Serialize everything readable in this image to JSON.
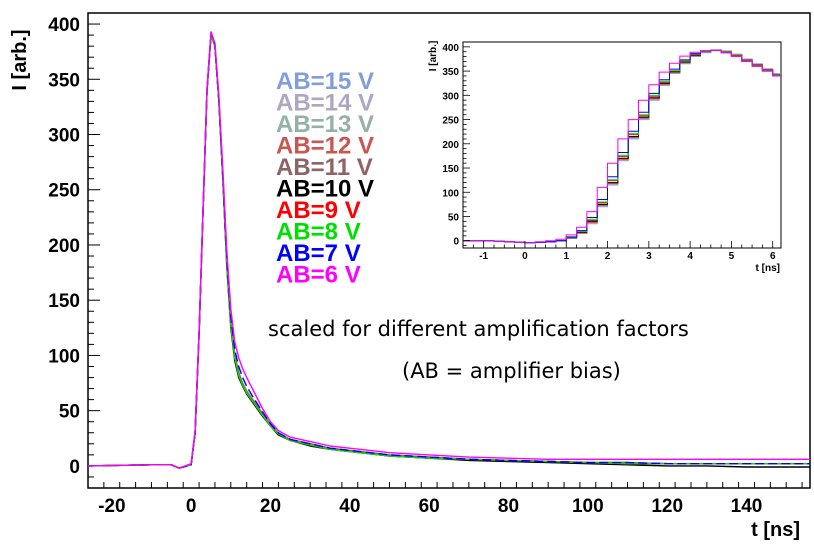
{
  "chart_data": [
    {
      "type": "line",
      "xlabel": "t [ns]",
      "ylabel": "I [arb.]",
      "xlim": [
        -26,
        156
      ],
      "ylim": [
        -20,
        410
      ],
      "xticks": [
        -20,
        0,
        20,
        40,
        60,
        80,
        100,
        120,
        140
      ],
      "yticks": [
        0,
        50,
        100,
        150,
        200,
        250,
        300,
        350,
        400
      ],
      "grid": false,
      "legend_position": "upper-middle",
      "annotations": [
        "scaled for different amplification factors",
        "(AB = amplifier bias)"
      ],
      "x": [
        -26,
        -10,
        -5,
        -3,
        0,
        1,
        2,
        3,
        4,
        5,
        6,
        7,
        8,
        9,
        10,
        11,
        12,
        13,
        14,
        16,
        18,
        20,
        22,
        25,
        30,
        35,
        40,
        45,
        50,
        60,
        70,
        80,
        90,
        100,
        110,
        120,
        130,
        140,
        150,
        156
      ],
      "series": [
        {
          "name": "AB=15 V",
          "color": "#7f9fdc",
          "values": [
            0,
            1,
            1,
            -2,
            1,
            30,
            120,
            230,
            340,
            390,
            380,
            330,
            260,
            185,
            130,
            100,
            85,
            75,
            68,
            58,
            48,
            38,
            30,
            24,
            20,
            16,
            14,
            12,
            10,
            8,
            6,
            5,
            4,
            3,
            3,
            2,
            2,
            2,
            2,
            2
          ]
        },
        {
          "name": "AB=14 V",
          "color": "#b1a6c1",
          "values": [
            0,
            1,
            1,
            -2,
            1,
            30,
            120,
            230,
            340,
            390,
            380,
            330,
            260,
            185,
            130,
            100,
            85,
            75,
            68,
            58,
            48,
            38,
            30,
            24,
            20,
            16,
            14,
            12,
            10,
            8,
            6,
            5,
            4,
            3,
            3,
            2,
            2,
            2,
            2,
            2
          ]
        },
        {
          "name": "AB=13 V",
          "color": "#93b1a7",
          "values": [
            0,
            1,
            1,
            -2,
            1,
            30,
            120,
            230,
            340,
            390,
            380,
            330,
            260,
            185,
            130,
            100,
            85,
            75,
            68,
            58,
            48,
            38,
            30,
            24,
            20,
            16,
            14,
            12,
            10,
            8,
            6,
            5,
            4,
            3,
            3,
            2,
            2,
            2,
            2,
            2
          ]
        },
        {
          "name": "AB=12 V",
          "color": "#c9574f",
          "values": [
            0,
            1,
            1,
            -2,
            1,
            30,
            120,
            230,
            340,
            390,
            380,
            330,
            260,
            185,
            130,
            100,
            84,
            74,
            67,
            57,
            47,
            37,
            29,
            24,
            20,
            16,
            14,
            12,
            10,
            8,
            6,
            5,
            4,
            3,
            3,
            2,
            2,
            2,
            2,
            2
          ]
        },
        {
          "name": "AB=11 V",
          "color": "#8e6363",
          "values": [
            0,
            1,
            1,
            -2,
            1,
            30,
            120,
            230,
            340,
            390,
            380,
            330,
            260,
            185,
            130,
            100,
            84,
            74,
            67,
            57,
            47,
            37,
            29,
            24,
            20,
            16,
            14,
            12,
            10,
            8,
            6,
            5,
            4,
            3,
            3,
            2,
            2,
            2,
            2,
            2
          ]
        },
        {
          "name": "AB=10 V",
          "color": "#000000",
          "values": [
            0,
            1,
            1,
            -2,
            1,
            30,
            120,
            230,
            340,
            390,
            380,
            330,
            258,
            180,
            125,
            95,
            80,
            72,
            65,
            55,
            45,
            36,
            28,
            23,
            18,
            15,
            13,
            11,
            9,
            7,
            5,
            4,
            3,
            2,
            1,
            0,
            0,
            -1,
            -1,
            -1
          ]
        },
        {
          "name": "AB=9 V",
          "color": "#ff0000",
          "values": [
            0,
            1,
            1,
            -2,
            1,
            30,
            120,
            230,
            340,
            390,
            380,
            330,
            258,
            182,
            128,
            98,
            82,
            73,
            66,
            56,
            46,
            36,
            29,
            23,
            19,
            15,
            13,
            11,
            9,
            7,
            6,
            5,
            4,
            3,
            2,
            2,
            2,
            2,
            2,
            2
          ]
        },
        {
          "name": "AB=8 V",
          "color": "#00e000",
          "values": [
            0,
            1,
            1,
            -2,
            1,
            30,
            120,
            230,
            340,
            390,
            380,
            330,
            258,
            182,
            128,
            98,
            82,
            73,
            66,
            56,
            46,
            36,
            29,
            23,
            19,
            15,
            13,
            11,
            9,
            7,
            6,
            5,
            4,
            3,
            2,
            2,
            2,
            2,
            2,
            2
          ]
        },
        {
          "name": "AB=7 V",
          "color": "#0000ff",
          "values": [
            0,
            1,
            1,
            -2,
            1,
            30,
            120,
            230,
            340,
            392,
            382,
            332,
            262,
            188,
            135,
            105,
            90,
            80,
            72,
            60,
            49,
            38,
            30,
            24,
            20,
            16,
            14,
            12,
            10,
            8,
            6,
            5,
            4,
            3,
            3,
            2,
            2,
            2,
            2,
            2
          ]
        },
        {
          "name": "AB=6 V",
          "color": "#ff00ff",
          "values": [
            0,
            1,
            1,
            -2,
            2,
            32,
            122,
            232,
            342,
            393,
            383,
            335,
            268,
            195,
            142,
            112,
            98,
            88,
            80,
            66,
            52,
            40,
            32,
            26,
            22,
            18,
            16,
            14,
            12,
            10,
            8,
            7,
            6,
            6,
            6,
            6,
            6,
            6,
            6,
            6
          ]
        }
      ]
    },
    {
      "type": "line",
      "xlabel": "t [ns]",
      "ylabel": "I [arb.]",
      "xlim": [
        -1.5,
        6.2
      ],
      "ylim": [
        -15,
        410
      ],
      "xticks": [
        -1,
        0,
        1,
        2,
        3,
        4,
        5,
        6
      ],
      "yticks": [
        0,
        50,
        100,
        150,
        200,
        250,
        300,
        350,
        400
      ],
      "grid": false,
      "x": [
        -1.5,
        -1.25,
        -1.0,
        -0.75,
        -0.5,
        -0.25,
        0.0,
        0.25,
        0.5,
        0.75,
        1.0,
        1.25,
        1.5,
        1.75,
        2.0,
        2.25,
        2.5,
        2.75,
        3.0,
        3.25,
        3.5,
        3.75,
        4.0,
        4.25,
        4.5,
        4.75,
        5.0,
        5.25,
        5.5,
        5.75,
        6.0
      ],
      "series": [
        {
          "name": "AB=15 V",
          "color": "#7f9fdc",
          "values": [
            0,
            0,
            0,
            -1,
            -2,
            -3,
            -4,
            -3,
            -2,
            0,
            5,
            15,
            35,
            70,
            115,
            165,
            210,
            250,
            290,
            320,
            345,
            365,
            380,
            388,
            393,
            392,
            385,
            375,
            365,
            355,
            345
          ]
        },
        {
          "name": "AB=14 V",
          "color": "#b1a6c1",
          "values": [
            0,
            0,
            0,
            -1,
            -2,
            -3,
            -4,
            -3,
            -2,
            0,
            5,
            15,
            36,
            71,
            116,
            166,
            211,
            251,
            291,
            321,
            346,
            366,
            381,
            389,
            393,
            391,
            384,
            374,
            364,
            354,
            344
          ]
        },
        {
          "name": "AB=13 V",
          "color": "#93b1a7",
          "values": [
            0,
            0,
            0,
            -1,
            -2,
            -3,
            -4,
            -3,
            -2,
            0,
            5,
            16,
            37,
            72,
            117,
            167,
            212,
            252,
            292,
            322,
            346,
            366,
            381,
            389,
            393,
            391,
            384,
            374,
            364,
            354,
            344
          ]
        },
        {
          "name": "AB=12 V",
          "color": "#c9574f",
          "values": [
            0,
            0,
            0,
            -1,
            -2,
            -3,
            -4,
            -3,
            -2,
            0,
            6,
            16,
            38,
            73,
            118,
            168,
            213,
            253,
            293,
            323,
            347,
            367,
            382,
            390,
            393,
            390,
            383,
            373,
            363,
            353,
            343
          ]
        },
        {
          "name": "AB=11 V",
          "color": "#8e6363",
          "values": [
            0,
            0,
            0,
            -1,
            -2,
            -3,
            -4,
            -3,
            -2,
            0,
            6,
            17,
            39,
            74,
            119,
            169,
            214,
            254,
            294,
            324,
            348,
            368,
            382,
            390,
            393,
            390,
            383,
            373,
            363,
            353,
            343
          ]
        },
        {
          "name": "AB=10 V",
          "color": "#000000",
          "values": [
            0,
            0,
            0,
            -1,
            -2,
            -3,
            -4,
            -3,
            -2,
            0,
            6,
            17,
            40,
            75,
            120,
            170,
            215,
            255,
            295,
            325,
            349,
            369,
            383,
            391,
            393,
            389,
            382,
            372,
            362,
            352,
            342
          ]
        },
        {
          "name": "AB=9 V",
          "color": "#ff0000",
          "values": [
            0,
            0,
            0,
            -1,
            -2,
            -3,
            -4,
            -3,
            -2,
            0,
            7,
            18,
            42,
            78,
            124,
            174,
            219,
            258,
            298,
            327,
            350,
            370,
            384,
            391,
            393,
            389,
            382,
            372,
            362,
            352,
            342
          ]
        },
        {
          "name": "AB=8 V",
          "color": "#00e000",
          "values": [
            0,
            0,
            0,
            -1,
            -2,
            -3,
            -4,
            -3,
            -2,
            0,
            7,
            19,
            44,
            80,
            126,
            176,
            221,
            260,
            300,
            329,
            351,
            371,
            385,
            391,
            393,
            389,
            381,
            371,
            361,
            351,
            341
          ]
        },
        {
          "name": "AB=7 V",
          "color": "#0000ff",
          "values": [
            0,
            0,
            0,
            -1,
            -2,
            -3,
            -4,
            -3,
            -2,
            0,
            8,
            21,
            48,
            85,
            132,
            182,
            226,
            265,
            304,
            332,
            354,
            373,
            386,
            392,
            393,
            388,
            380,
            370,
            360,
            350,
            340
          ]
        },
        {
          "name": "AB=6 V",
          "color": "#ff00ff",
          "values": [
            0,
            0,
            0,
            -1,
            -2,
            -3,
            -4,
            -2,
            0,
            3,
            12,
            28,
            60,
            110,
            160,
            210,
            250,
            290,
            322,
            348,
            366,
            381,
            389,
            392,
            393,
            388,
            380,
            370,
            360,
            350,
            340
          ]
        }
      ]
    }
  ]
}
